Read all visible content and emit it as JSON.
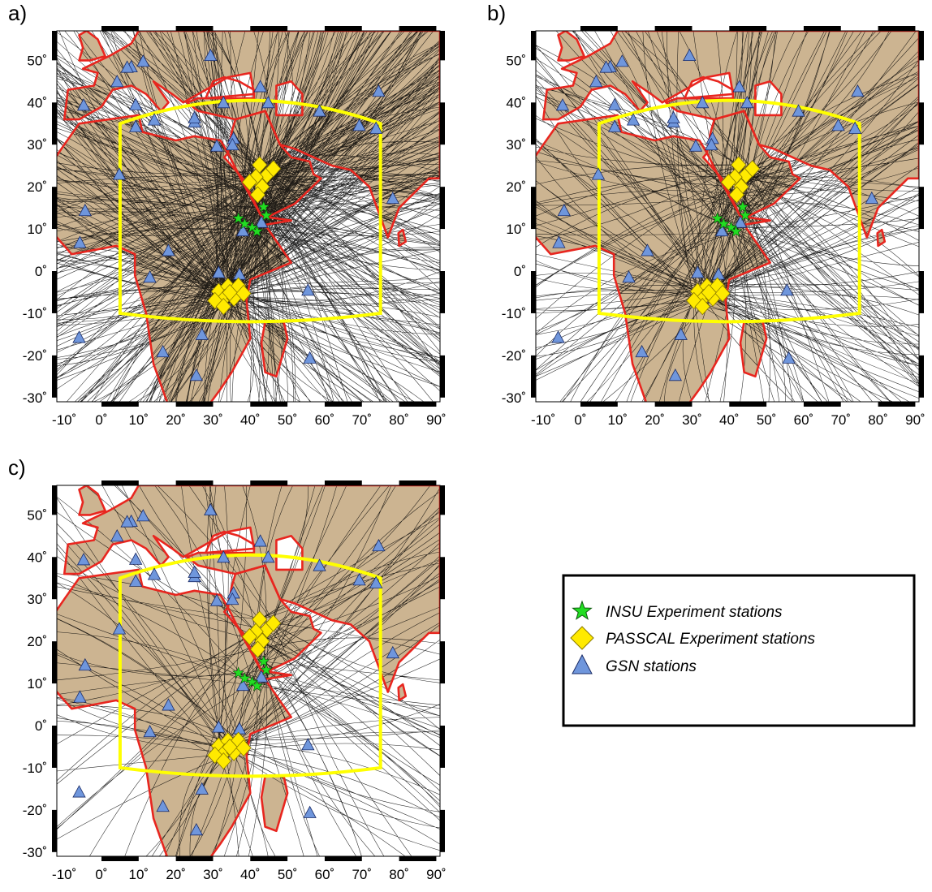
{
  "figure": {
    "panels": [
      {
        "label": "a)",
        "path_density": "high"
      },
      {
        "label": "b)",
        "path_density": "medium"
      },
      {
        "label": "c)",
        "path_density": "low"
      }
    ],
    "x_tick_labels": [
      "-10˚",
      "0˚",
      "10˚",
      "20˚",
      "30˚",
      "40˚",
      "50˚",
      "60˚",
      "70˚",
      "80˚",
      "90˚"
    ],
    "y_tick_labels": [
      "50˚",
      "40˚",
      "30˚",
      "20˚",
      "10˚",
      "0˚",
      "-10˚",
      "-20˚",
      "-30˚"
    ],
    "extent": {
      "lon": [
        -12,
        91
      ],
      "lat": [
        -31,
        57
      ]
    },
    "colors": {
      "land": "#ccb491",
      "coast": "#e8261f",
      "region_box": "#ffff00",
      "paths": "#000000",
      "insu": "#22dd22",
      "passcal": "#ffea00",
      "gsn": "#6f96dc"
    },
    "legend": {
      "items": [
        {
          "symbol": "star-icon",
          "label": "INSU Experiment stations"
        },
        {
          "symbol": "diamond-icon",
          "label": "PASSCAL Experiment stations"
        },
        {
          "symbol": "triangle-icon",
          "label": "GSN stations"
        }
      ]
    },
    "region_box": {
      "lon": [
        5,
        75
      ],
      "lat_top_edge": 35,
      "lat_top_center": 40.5,
      "lat_bottom_edge": -10,
      "lat_bottom_center": -12
    },
    "stations": {
      "insu": [
        [
          36.8,
          12.5
        ],
        [
          38.5,
          11.2
        ],
        [
          40.5,
          10.3
        ],
        [
          41.8,
          9.4
        ],
        [
          43.6,
          15.2
        ],
        [
          44.3,
          13.2
        ]
      ],
      "passcal": [
        [
          42.5,
          25.2
        ],
        [
          44.5,
          22.8
        ],
        [
          41.5,
          22.3
        ],
        [
          46.2,
          24.3
        ],
        [
          39.8,
          21.1
        ],
        [
          43.2,
          20.0
        ],
        [
          42.0,
          18.1
        ],
        [
          31.5,
          -4.8
        ],
        [
          34.0,
          -3.6
        ],
        [
          36.8,
          -3.5
        ],
        [
          33.2,
          -6.2
        ],
        [
          35.6,
          -6.4
        ],
        [
          30.5,
          -7.0
        ],
        [
          32.8,
          -8.4
        ],
        [
          38.2,
          -5.3
        ],
        [
          34.5,
          -5.1
        ]
      ],
      "gsn": [
        [
          29.3,
          51.1
        ],
        [
          11.2,
          49.7
        ],
        [
          8.0,
          48.4
        ],
        [
          6.9,
          48.3
        ],
        [
          4.2,
          44.9
        ],
        [
          42.7,
          43.7
        ],
        [
          74.5,
          42.6
        ],
        [
          -4.8,
          39.3
        ],
        [
          9.2,
          39.4
        ],
        [
          32.8,
          39.9
        ],
        [
          44.8,
          39.9
        ],
        [
          58.6,
          37.9
        ],
        [
          25.0,
          35.3
        ],
        [
          25.0,
          36.3
        ],
        [
          14.2,
          35.8
        ],
        [
          9.2,
          34.2
        ],
        [
          69.3,
          34.5
        ],
        [
          73.8,
          33.8
        ],
        [
          35.5,
          31.4
        ],
        [
          31.0,
          29.6
        ],
        [
          35.2,
          29.9
        ],
        [
          4.8,
          22.9
        ],
        [
          78.3,
          17.2
        ],
        [
          -4.4,
          14.3
        ],
        [
          -5.8,
          6.7
        ],
        [
          18.0,
          4.8
        ],
        [
          43.0,
          11.5
        ],
        [
          38.0,
          9.5
        ],
        [
          13.0,
          -1.5
        ],
        [
          31.5,
          -0.4
        ],
        [
          37.1,
          -0.8
        ],
        [
          55.5,
          -4.6
        ],
        [
          -6.0,
          -15.8
        ],
        [
          27.0,
          -15.1
        ],
        [
          16.5,
          -19.2
        ],
        [
          56.0,
          -20.7
        ],
        [
          25.5,
          -24.8
        ]
      ]
    }
  }
}
